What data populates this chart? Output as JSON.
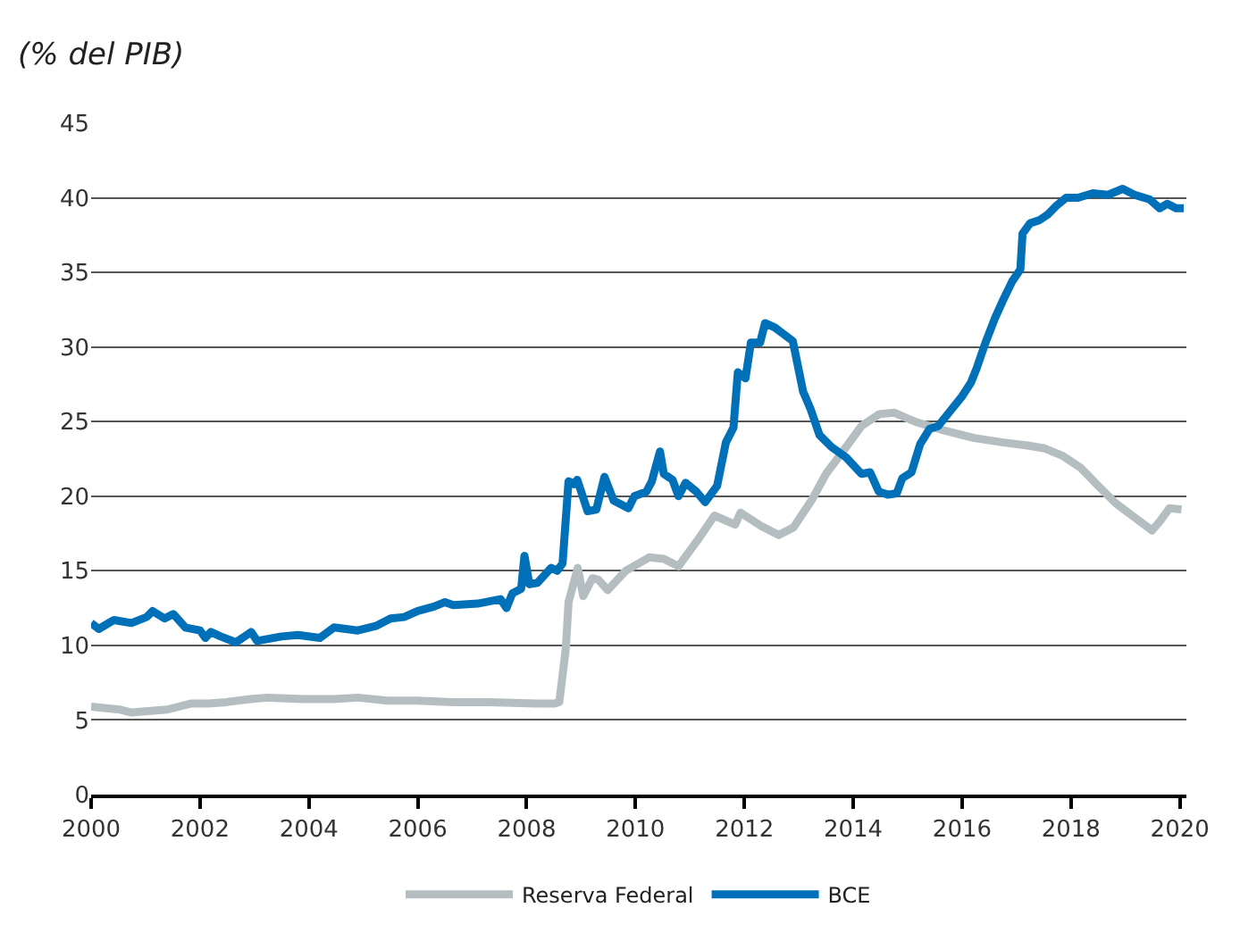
{
  "chart_data": {
    "type": "line",
    "subtitle": "(% del PIB)",
    "xlim": [
      2000,
      2020.12
    ],
    "xticks": [
      2000,
      2002,
      2004,
      2006,
      2008,
      2010,
      2012,
      2014,
      2016,
      2018,
      2020
    ],
    "ylim": [
      0,
      45
    ],
    "yticks": [
      0,
      5,
      10,
      15,
      20,
      25,
      30,
      35,
      40,
      45
    ],
    "grid": "y",
    "legend": "bottom",
    "line_style": "solid",
    "marker": "none",
    "series": [
      {
        "name": "Reserva Federal",
        "color": "#b4bec0",
        "x": [
          2000.0,
          2000.52,
          2000.74,
          2001.4,
          2001.83,
          2002.16,
          2002.49,
          2002.93,
          2003.25,
          2003.91,
          2004.46,
          2004.9,
          2005.44,
          2005.99,
          2006.64,
          2007.3,
          2008.17,
          2008.5,
          2008.6,
          2008.72,
          2008.77,
          2008.94,
          2009.04,
          2009.21,
          2009.32,
          2009.49,
          2009.82,
          2010.25,
          2010.52,
          2010.79,
          2010.95,
          2011.17,
          2011.45,
          2011.83,
          2011.93,
          2012.31,
          2012.63,
          2012.9,
          2013.23,
          2013.5,
          2013.83,
          2014.15,
          2014.48,
          2014.75,
          2015.13,
          2015.67,
          2016.22,
          2016.76,
          2017.2,
          2017.52,
          2017.85,
          2018.18,
          2018.5,
          2018.83,
          2019.16,
          2019.49,
          2019.65,
          2019.81,
          2020.03
        ],
        "values": [
          5.9,
          5.7,
          5.5,
          5.7,
          6.1,
          6.1,
          6.2,
          6.4,
          6.5,
          6.4,
          6.4,
          6.5,
          6.3,
          6.3,
          6.2,
          6.2,
          6.1,
          6.1,
          6.2,
          9.8,
          12.9,
          15.2,
          13.3,
          14.5,
          14.4,
          13.7,
          15.0,
          15.9,
          15.8,
          15.3,
          16.1,
          17.2,
          18.7,
          18.1,
          18.9,
          18.0,
          17.4,
          17.9,
          19.7,
          21.5,
          23.1,
          24.7,
          25.5,
          25.6,
          25.0,
          24.4,
          23.9,
          23.6,
          23.4,
          23.2,
          22.7,
          21.9,
          20.7,
          19.5,
          18.6,
          17.7,
          18.4,
          19.2,
          19.1
        ]
      },
      {
        "name": "BCE",
        "color": "#0070b8",
        "x": [
          2000.0,
          2000.14,
          2000.42,
          2000.74,
          2001.02,
          2001.13,
          2001.35,
          2001.51,
          2001.73,
          2002.0,
          2002.1,
          2002.2,
          2002.38,
          2002.66,
          2002.94,
          2003.05,
          2003.5,
          2003.8,
          2004.2,
          2004.46,
          2004.9,
          2005.23,
          2005.5,
          2005.75,
          2006.0,
          2006.3,
          2006.5,
          2006.65,
          2007.1,
          2007.52,
          2007.63,
          2007.74,
          2007.9,
          2007.96,
          2008.05,
          2008.2,
          2008.45,
          2008.56,
          2008.66,
          2008.77,
          2008.87,
          2008.93,
          2009.12,
          2009.28,
          2009.43,
          2009.6,
          2009.87,
          2009.98,
          2010.2,
          2010.3,
          2010.45,
          2010.52,
          2010.68,
          2010.79,
          2010.92,
          2011.12,
          2011.28,
          2011.5,
          2011.66,
          2011.8,
          2011.88,
          2012.02,
          2012.12,
          2012.29,
          2012.38,
          2012.56,
          2012.89,
          2013.08,
          2013.22,
          2013.38,
          2013.6,
          2013.87,
          2014.15,
          2014.31,
          2014.47,
          2014.64,
          2014.8,
          2014.9,
          2015.07,
          2015.23,
          2015.4,
          2015.56,
          2015.78,
          2016.0,
          2016.16,
          2016.27,
          2016.43,
          2016.6,
          2016.76,
          2016.92,
          2017.07,
          2017.11,
          2017.25,
          2017.42,
          2017.58,
          2017.74,
          2017.91,
          2018.13,
          2018.4,
          2018.68,
          2018.95,
          2019.17,
          2019.44,
          2019.63,
          2019.77,
          2019.93,
          2020.07
        ],
        "values": [
          11.5,
          11.1,
          11.7,
          11.5,
          11.9,
          12.3,
          11.8,
          12.1,
          11.2,
          11.0,
          10.5,
          10.9,
          10.6,
          10.2,
          10.9,
          10.3,
          10.6,
          10.7,
          10.5,
          11.2,
          11.0,
          11.3,
          11.8,
          11.9,
          12.3,
          12.6,
          12.9,
          12.7,
          12.8,
          13.1,
          12.5,
          13.5,
          13.8,
          16.0,
          14.1,
          14.2,
          15.2,
          15.0,
          15.5,
          21.0,
          20.8,
          21.1,
          19.0,
          19.1,
          21.3,
          19.7,
          19.2,
          20.0,
          20.3,
          21.0,
          23.0,
          21.5,
          21.1,
          20.0,
          20.9,
          20.3,
          19.6,
          20.7,
          23.6,
          24.6,
          28.3,
          27.9,
          30.3,
          30.3,
          31.6,
          31.3,
          30.4,
          27.0,
          25.8,
          24.1,
          23.3,
          22.6,
          21.5,
          21.6,
          20.3,
          20.1,
          20.2,
          21.2,
          21.6,
          23.5,
          24.5,
          24.7,
          25.7,
          26.7,
          27.6,
          28.6,
          30.3,
          31.9,
          33.2,
          34.4,
          35.2,
          37.6,
          38.3,
          38.5,
          38.9,
          39.5,
          40.0,
          40.0,
          40.3,
          40.2,
          40.6,
          40.2,
          39.9,
          39.3,
          39.6,
          39.3,
          39.3
        ]
      }
    ]
  }
}
